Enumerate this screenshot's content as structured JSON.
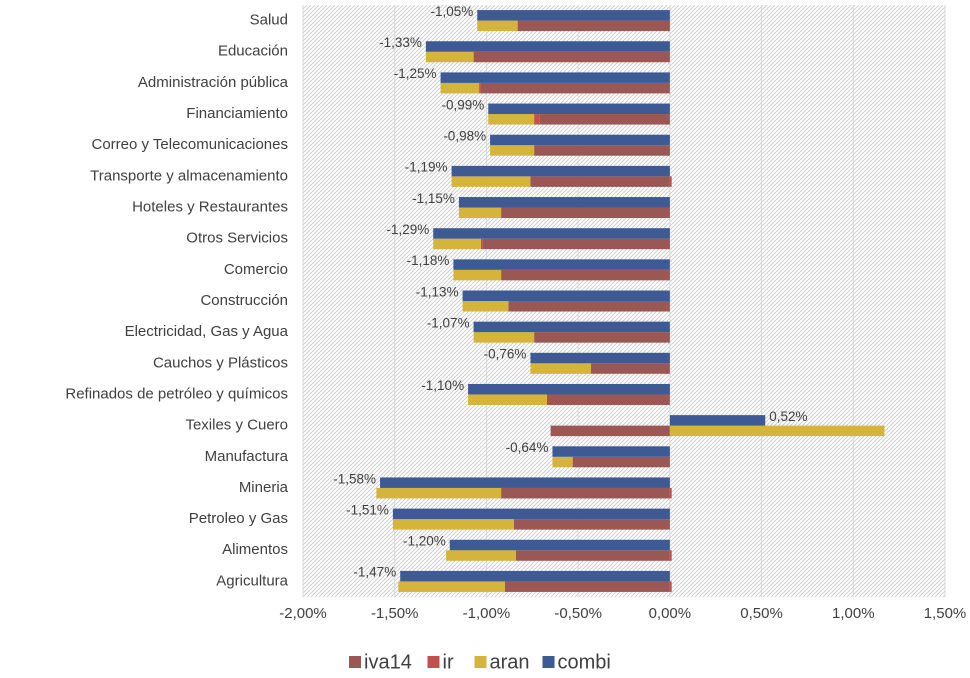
{
  "chart_data": {
    "type": "bar",
    "orientation": "horizontal",
    "categories": [
      "Salud",
      "Educación",
      "Administración pública",
      "Financiamiento",
      "Correo y Telecomunicaciones",
      "Transporte y almacenamiento",
      "Hoteles y Restaurantes",
      "Otros Servicios",
      "Comercio",
      "Construcción",
      "Electricidad, Gas y Agua",
      "Cauchos y Plásticos",
      "Refinados de petróleo y químicos",
      "Texiles y Cuero",
      "Manufactura",
      "Mineria",
      "Petroleo y Gas",
      "Alimentos",
      "Agricultura"
    ],
    "series": [
      {
        "name": "iva14",
        "color": "#9b5754",
        "stack": "a",
        "values": [
          -0.83,
          -1.07,
          -1.03,
          -0.71,
          -0.74,
          -0.76,
          -0.92,
          -1.02,
          -0.92,
          -0.88,
          -0.74,
          -0.43,
          -0.67,
          -0.65,
          -0.53,
          -0.92,
          -0.85,
          -0.84,
          -0.9
        ]
      },
      {
        "name": "ir",
        "color": "#c0504d",
        "stack": "a",
        "values": [
          0,
          0,
          -0.01,
          -0.03,
          0,
          0.01,
          0,
          -0.01,
          0,
          0,
          0,
          0,
          0,
          0,
          0,
          0.01,
          0,
          0.01,
          0.01
        ]
      },
      {
        "name": "aran",
        "color": "#d5b43c",
        "stack": "a",
        "values": [
          -0.22,
          -0.26,
          -0.21,
          -0.25,
          -0.24,
          -0.43,
          -0.23,
          -0.26,
          -0.26,
          -0.25,
          -0.33,
          -0.33,
          -0.43,
          1.17,
          -0.11,
          -0.68,
          -0.66,
          -0.38,
          -0.58
        ]
      },
      {
        "name": "combi",
        "color": "#3d5a94",
        "stack": "b",
        "values": [
          -1.05,
          -1.33,
          -1.25,
          -0.99,
          -0.98,
          -1.19,
          -1.15,
          -1.29,
          -1.18,
          -1.13,
          -1.07,
          -0.76,
          -1.1,
          0.52,
          -0.64,
          -1.58,
          -1.51,
          -1.2,
          -1.47
        ],
        "value_labels": [
          "-1,05%",
          "-1,33%",
          "-1,25%",
          "-0,99%",
          "-0,98%",
          "-1,19%",
          "-1,15%",
          "-1,29%",
          "-1,18%",
          "-1,13%",
          "-1,07%",
          "-0,76%",
          "-1,10%",
          "0,52%",
          "-0,64%",
          "-1,58%",
          "-1,51%",
          "-1,20%",
          "-1,47%"
        ]
      }
    ],
    "xlim": [
      -2,
      1.5
    ],
    "xticks": [
      {
        "value": -2,
        "label": "-2,00%"
      },
      {
        "value": -1.5,
        "label": "-1,50%"
      },
      {
        "value": -1,
        "label": "-1,00%"
      },
      {
        "value": -0.5,
        "label": "-0,50%"
      },
      {
        "value": 0,
        "label": "0,00%"
      },
      {
        "value": 0.5,
        "label": "0,50%"
      },
      {
        "value": 1,
        "label": "1,00%"
      },
      {
        "value": 1.5,
        "label": "1,50%"
      }
    ],
    "grid": true,
    "legend": "bottom"
  }
}
